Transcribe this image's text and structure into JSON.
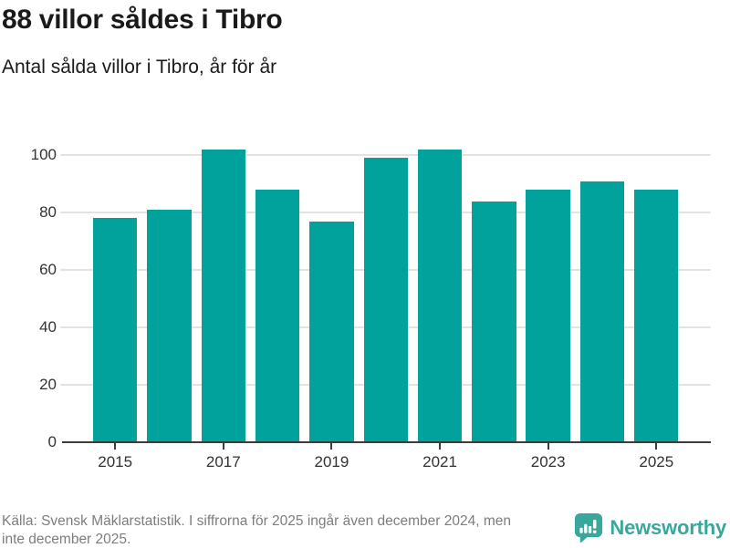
{
  "header": {
    "title": "88 villor såldes i Tibro",
    "subtitle": "Antal sålda villor i Tibro, år för år"
  },
  "chart_data": {
    "type": "bar",
    "title": "88 villor såldes i Tibro",
    "subtitle": "Antal sålda villor i Tibro, år för år",
    "categories": [
      "2015",
      "2016",
      "2017",
      "2018",
      "2019",
      "2020",
      "2021",
      "2022",
      "2023",
      "2024",
      "2025"
    ],
    "values": [
      78,
      81,
      102,
      88,
      77,
      99,
      102,
      84,
      88,
      91,
      88
    ],
    "xlabel": "",
    "ylabel": "",
    "ylim": [
      0,
      105
    ],
    "y_ticks": [
      0,
      20,
      40,
      60,
      80,
      100
    ],
    "x_tick_labels": [
      "2015",
      "2017",
      "2019",
      "2021",
      "2023",
      "2025"
    ],
    "x_tick_indices": [
      0,
      2,
      4,
      6,
      8,
      10
    ],
    "grid": "horizontal-only",
    "legend": "none",
    "bar_color": "#00a29b"
  },
  "footer": {
    "source_line1": "Källa: Svensk Mäklarstatistik. I siffrorna för 2025 ingår även december 2024, men",
    "source_line2": "inte december 2025.",
    "logo_text": "Newsworthy"
  },
  "colors": {
    "bar": "#00a29b",
    "logo": "#3aa79c",
    "axis": "#3c3c3c",
    "grid": "#e3e3e3",
    "tick_label": "#333333",
    "footer_text": "#7d7d7d",
    "title_text": "#1a1a1a"
  }
}
